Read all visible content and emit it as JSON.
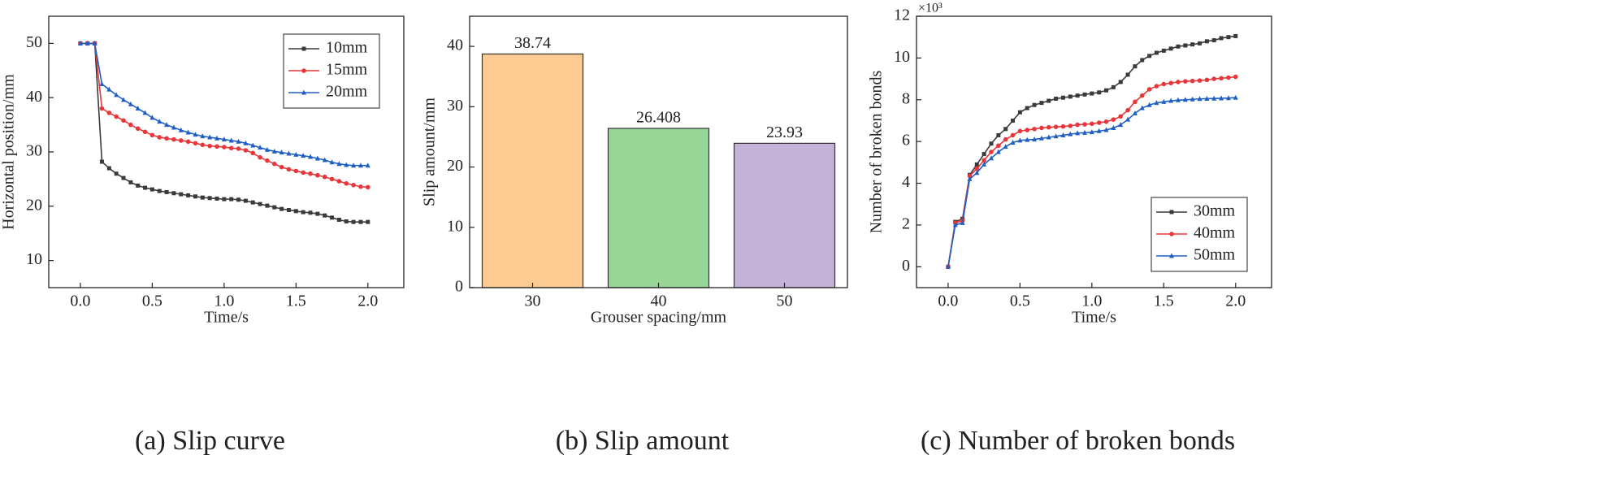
{
  "chart_data": [
    {
      "type": "line",
      "caption": "(a) Slip curve",
      "xlabel": "Time/s",
      "ylabel": "Horizontal position/mm",
      "x": [
        0,
        0.05,
        0.1,
        0.15,
        0.2,
        0.25,
        0.3,
        0.35,
        0.4,
        0.45,
        0.5,
        0.55,
        0.6,
        0.65,
        0.7,
        0.75,
        0.8,
        0.85,
        0.9,
        0.95,
        1.0,
        1.05,
        1.1,
        1.15,
        1.2,
        1.25,
        1.3,
        1.35,
        1.4,
        1.45,
        1.5,
        1.55,
        1.6,
        1.65,
        1.7,
        1.75,
        1.8,
        1.85,
        1.9,
        1.95,
        2.0
      ],
      "series": [
        {
          "name": "10mm",
          "color": "#3a3a3a",
          "marker": "square",
          "values": [
            50,
            50,
            50,
            28.2,
            27,
            26,
            25.2,
            24.4,
            23.8,
            23.4,
            23.1,
            22.8,
            22.6,
            22.4,
            22.2,
            22,
            21.8,
            21.6,
            21.5,
            21.4,
            21.3,
            21.3,
            21.2,
            21,
            20.7,
            20.4,
            20.1,
            19.8,
            19.5,
            19.3,
            19.1,
            18.9,
            18.8,
            18.6,
            18.3,
            17.9,
            17.5,
            17.2,
            17.1,
            17.1,
            17.1
          ]
        },
        {
          "name": "15mm",
          "color": "#e8363a",
          "marker": "circle",
          "values": [
            50,
            50,
            50,
            38,
            37.2,
            36.5,
            35.8,
            35,
            34.3,
            33.7,
            33.1,
            32.7,
            32.5,
            32.3,
            32.1,
            31.9,
            31.6,
            31.3,
            31.1,
            31,
            30.9,
            30.7,
            30.6,
            30.3,
            29.8,
            29,
            28.4,
            27.8,
            27.2,
            26.8,
            26.5,
            26.2,
            26,
            25.7,
            25.4,
            25,
            24.6,
            24.2,
            23.9,
            23.6,
            23.5
          ]
        },
        {
          "name": "20mm",
          "color": "#1f5fc4",
          "marker": "triangle",
          "values": [
            50,
            50,
            50,
            42.5,
            41.5,
            40.5,
            39.6,
            38.8,
            38,
            37.2,
            36.3,
            35.6,
            35,
            34.5,
            34,
            33.6,
            33.2,
            32.9,
            32.7,
            32.5,
            32.3,
            32.1,
            31.9,
            31.6,
            31.2,
            30.8,
            30.4,
            30.1,
            29.9,
            29.7,
            29.5,
            29.3,
            29.1,
            28.8,
            28.5,
            28.1,
            27.8,
            27.6,
            27.5,
            27.5,
            27.5
          ]
        }
      ],
      "xlim": [
        -0.22,
        2.25
      ],
      "xticks": [
        {
          "value": 0,
          "label": "0.0"
        },
        0.5,
        {
          "value": 1,
          "label": "1.0"
        },
        1.5,
        {
          "value": 2,
          "label": "2.0"
        }
      ],
      "ylim": [
        5,
        55
      ],
      "yticks": [
        10,
        20,
        30,
        40,
        50
      ],
      "legend": "upper right"
    },
    {
      "type": "bar",
      "caption": "(b)  Slip amount",
      "xlabel": "Grouser spacing/mm",
      "ylabel": "Slip amount/mm",
      "categories": [
        "30",
        "40",
        "50"
      ],
      "values": [
        38.74,
        26.408,
        23.93
      ],
      "colors": [
        "#fccc92",
        "#98d698",
        "#c4b2d8"
      ],
      "ylim": [
        0,
        45
      ],
      "yticks": [
        0,
        10,
        20,
        30,
        40
      ]
    },
    {
      "type": "line",
      "caption": "(c)  Number of broken bonds",
      "xlabel": "Time/s",
      "ylabel": "Number of broken bonds",
      "y_scale_label": "×10³",
      "x": [
        0,
        0.05,
        0.1,
        0.15,
        0.2,
        0.25,
        0.3,
        0.35,
        0.4,
        0.45,
        0.5,
        0.55,
        0.6,
        0.65,
        0.7,
        0.75,
        0.8,
        0.85,
        0.9,
        0.95,
        1.0,
        1.05,
        1.1,
        1.15,
        1.2,
        1.25,
        1.3,
        1.35,
        1.4,
        1.45,
        1.5,
        1.55,
        1.6,
        1.65,
        1.7,
        1.75,
        1.8,
        1.85,
        1.9,
        1.95,
        2.0
      ],
      "series": [
        {
          "name": "30mm",
          "color": "#3a3a3a",
          "marker": "square",
          "values": [
            0,
            2.15,
            2.3,
            4.4,
            4.9,
            5.4,
            5.9,
            6.3,
            6.6,
            7.0,
            7.4,
            7.6,
            7.75,
            7.85,
            7.95,
            8.05,
            8.1,
            8.15,
            8.2,
            8.25,
            8.3,
            8.35,
            8.45,
            8.6,
            8.85,
            9.2,
            9.6,
            9.9,
            10.1,
            10.25,
            10.35,
            10.45,
            10.55,
            10.6,
            10.65,
            10.7,
            10.8,
            10.85,
            10.95,
            11.0,
            11.05
          ]
        },
        {
          "name": "40mm",
          "color": "#e8363a",
          "marker": "circle",
          "values": [
            0,
            2.1,
            2.2,
            4.35,
            4.7,
            5.1,
            5.5,
            5.8,
            6.1,
            6.3,
            6.5,
            6.55,
            6.6,
            6.65,
            6.68,
            6.7,
            6.72,
            6.75,
            6.8,
            6.82,
            6.85,
            6.9,
            6.95,
            7.05,
            7.2,
            7.5,
            7.9,
            8.2,
            8.5,
            8.65,
            8.75,
            8.8,
            8.85,
            8.88,
            8.9,
            8.92,
            8.95,
            9.0,
            9.03,
            9.06,
            9.1
          ]
        },
        {
          "name": "50mm",
          "color": "#1f5fc4",
          "marker": "triangle",
          "values": [
            0,
            2.0,
            2.1,
            4.2,
            4.5,
            4.9,
            5.2,
            5.5,
            5.75,
            5.95,
            6.05,
            6.08,
            6.1,
            6.15,
            6.2,
            6.25,
            6.3,
            6.35,
            6.4,
            6.42,
            6.45,
            6.5,
            6.55,
            6.65,
            6.8,
            7.05,
            7.35,
            7.6,
            7.75,
            7.85,
            7.9,
            7.95,
            7.98,
            8.0,
            8.02,
            8.04,
            8.05,
            8.06,
            8.07,
            8.08,
            8.1
          ]
        }
      ],
      "xlim": [
        -0.22,
        2.25
      ],
      "xticks": [
        {
          "value": 0,
          "label": "0.0"
        },
        0.5,
        {
          "value": 1,
          "label": "1.0"
        },
        1.5,
        {
          "value": 2,
          "label": "2.0"
        }
      ],
      "ylim": [
        -1,
        12
      ],
      "yticks": [
        0,
        2,
        4,
        6,
        8,
        10,
        12
      ],
      "legend": "lower right"
    }
  ]
}
